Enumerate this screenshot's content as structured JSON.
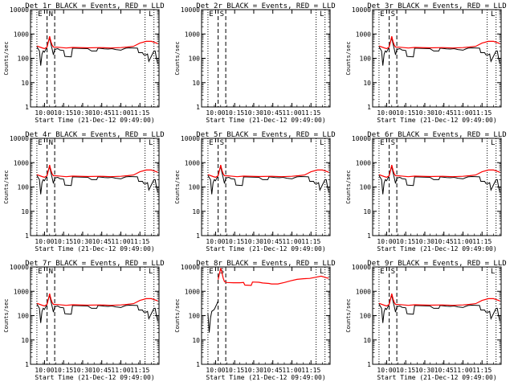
{
  "figure": {
    "xlabel": "Start Time (21-Dec-12 09:49:00)",
    "ylabel": "Counts/sec",
    "x_tick_labels": [
      "10:00",
      "10:15",
      "10:30",
      "10:45",
      "11:00",
      "11:15"
    ],
    "y_tick_labels": [
      "1",
      "10",
      "100",
      "1000",
      "10000"
    ],
    "colors": {
      "events": "#000000",
      "lld": "#ff0000",
      "background": "#ffffff"
    }
  },
  "chart_data": [
    {
      "type": "line",
      "title": "Det 1r BLACK = Events, RED = LLD",
      "events_shown": true,
      "mode": "normal",
      "markers": [
        "E",
        "N",
        "L"
      ]
    },
    {
      "type": "line",
      "title": "Det 2r BLACK = Events, RED = LLD",
      "events_shown": false,
      "mode": "empty",
      "markers": [
        "E",
        "S",
        "L"
      ]
    },
    {
      "type": "line",
      "title": "Det 3r BLACK = Events, RED = LLD",
      "events_shown": true,
      "mode": "normal",
      "markers": [
        "E",
        "S",
        "L"
      ]
    },
    {
      "type": "line",
      "title": "Det 4r BLACK = Events, RED = LLD",
      "events_shown": true,
      "mode": "normal",
      "markers": [
        "E",
        "N",
        "L"
      ]
    },
    {
      "type": "line",
      "title": "Det 5r BLACK = Events, RED = LLD",
      "events_shown": true,
      "mode": "normal",
      "markers": [
        "E",
        "S",
        "L"
      ]
    },
    {
      "type": "line",
      "title": "Det 6r BLACK = Events, RED = LLD",
      "events_shown": true,
      "mode": "normal",
      "markers": [
        "E",
        "S",
        "L"
      ]
    },
    {
      "type": "line",
      "title": "Det 7r BLACK = Events, RED = LLD",
      "events_shown": true,
      "mode": "normal",
      "markers": [
        "E",
        "N",
        "L"
      ]
    },
    {
      "type": "line",
      "title": "Det 8r BLACK = Events, RED = LLD",
      "events_shown": true,
      "mode": "det8",
      "markers": [
        "E",
        "S",
        "L"
      ]
    },
    {
      "type": "line",
      "title": "Det 9r BLACK = Events, RED = LLD",
      "events_shown": true,
      "mode": "normal",
      "markers": [
        "E",
        "S",
        "L"
      ]
    }
  ],
  "series_profiles": {
    "x_unit": "minutes since 09:49",
    "xlim": [
      0,
      101
    ],
    "ylim": [
      1,
      10000
    ],
    "y_scale": "log",
    "vertical_dotted_x": [
      5,
      90,
      97
    ],
    "vertical_dashed_x": [
      13,
      19
    ],
    "normal_events": [
      [
        5,
        300
      ],
      [
        7,
        200
      ],
      [
        8,
        50
      ],
      [
        9,
        150
      ],
      [
        10,
        200
      ],
      [
        11,
        180
      ],
      [
        13,
        300
      ],
      [
        15,
        700
      ],
      [
        16,
        400
      ],
      [
        17,
        240
      ],
      [
        18,
        140
      ],
      [
        19,
        230
      ],
      [
        21,
        250
      ],
      [
        22,
        240
      ],
      [
        23,
        220
      ],
      [
        26,
        210
      ],
      [
        27,
        120
      ],
      [
        32,
        115
      ],
      [
        33,
        260
      ],
      [
        40,
        255
      ],
      [
        45,
        250
      ],
      [
        48,
        200
      ],
      [
        52,
        200
      ],
      [
        53,
        260
      ],
      [
        58,
        245
      ],
      [
        61,
        240
      ],
      [
        64,
        250
      ],
      [
        67,
        230
      ],
      [
        71,
        215
      ],
      [
        73,
        240
      ],
      [
        75,
        260
      ],
      [
        78,
        270
      ],
      [
        84,
        260
      ],
      [
        85,
        170
      ],
      [
        88,
        170
      ],
      [
        89,
        140
      ],
      [
        91,
        140
      ],
      [
        92,
        150
      ],
      [
        93,
        75
      ],
      [
        97,
        200
      ],
      [
        98,
        200
      ],
      [
        99,
        100
      ],
      [
        100,
        60
      ]
    ],
    "normal_lld": [
      [
        5,
        320
      ],
      [
        9,
        270
      ],
      [
        11,
        250
      ],
      [
        13,
        290
      ],
      [
        15,
        800
      ],
      [
        16,
        500
      ],
      [
        17,
        350
      ],
      [
        18,
        290
      ],
      [
        21,
        285
      ],
      [
        28,
        265
      ],
      [
        33,
        280
      ],
      [
        45,
        270
      ],
      [
        55,
        275
      ],
      [
        63,
        265
      ],
      [
        71,
        275
      ],
      [
        76,
        290
      ],
      [
        81,
        310
      ],
      [
        86,
        420
      ],
      [
        91,
        500
      ],
      [
        95,
        500
      ],
      [
        99,
        420
      ],
      [
        100,
        400
      ]
    ],
    "det8_events": [
      [
        5,
        120
      ],
      [
        6,
        20
      ],
      [
        7,
        80
      ],
      [
        8,
        150
      ],
      [
        10,
        180
      ],
      [
        12,
        300
      ],
      [
        13,
        400
      ]
    ],
    "det8_lld": [
      [
        13,
        3000
      ],
      [
        15,
        9000
      ],
      [
        16,
        6000
      ],
      [
        17,
        3500
      ],
      [
        18,
        2500
      ],
      [
        20,
        2300
      ],
      [
        25,
        2250
      ],
      [
        30,
        2250
      ],
      [
        33,
        2300
      ],
      [
        34,
        1800
      ],
      [
        39,
        1750
      ],
      [
        40,
        2400
      ],
      [
        45,
        2350
      ],
      [
        48,
        2200
      ],
      [
        53,
        2100
      ],
      [
        55,
        2000
      ],
      [
        60,
        2000
      ],
      [
        65,
        2300
      ],
      [
        70,
        2700
      ],
      [
        75,
        3100
      ],
      [
        80,
        3300
      ],
      [
        85,
        3400
      ],
      [
        90,
        3800
      ],
      [
        94,
        4200
      ],
      [
        99,
        3500
      ],
      [
        100,
        3500
      ]
    ]
  }
}
